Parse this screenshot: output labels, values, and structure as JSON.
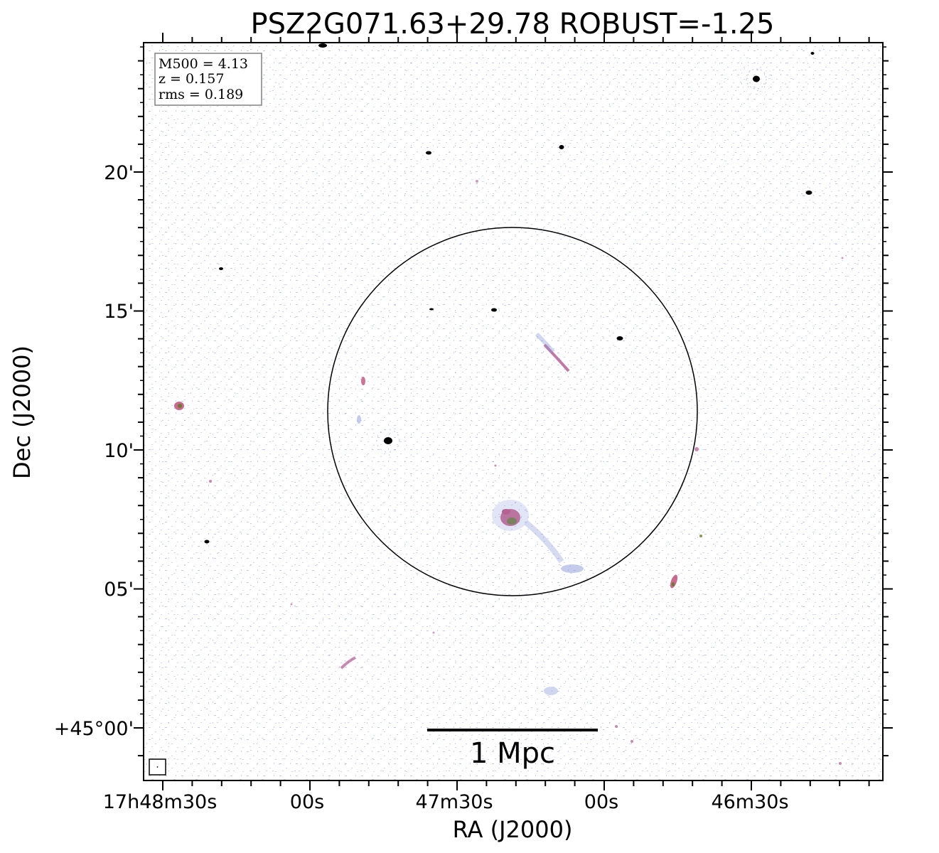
{
  "title": "PSZ2G071.63+29.78 ROBUST=-1.25",
  "axes": {
    "xlabel": "RA (J2000)",
    "ylabel": "Dec (J2000)",
    "x_ticks": [
      "17h48m30s",
      "00s",
      "47m30s",
      "00s",
      "46m30s"
    ],
    "y_ticks": [
      "20'",
      "15'",
      "10'",
      "05'",
      "+45°00'"
    ]
  },
  "info_box": {
    "line1": "M500 = 4.13",
    "line2": "z = 0.157",
    "line3": "rms = 0.189"
  },
  "scale_bar": {
    "label": "1 Mpc"
  },
  "colors": {
    "frame": "#000000",
    "noise": "#7f8fd8",
    "emission": "#c0507a",
    "core": "#6a7a30",
    "source": "#000000"
  }
}
